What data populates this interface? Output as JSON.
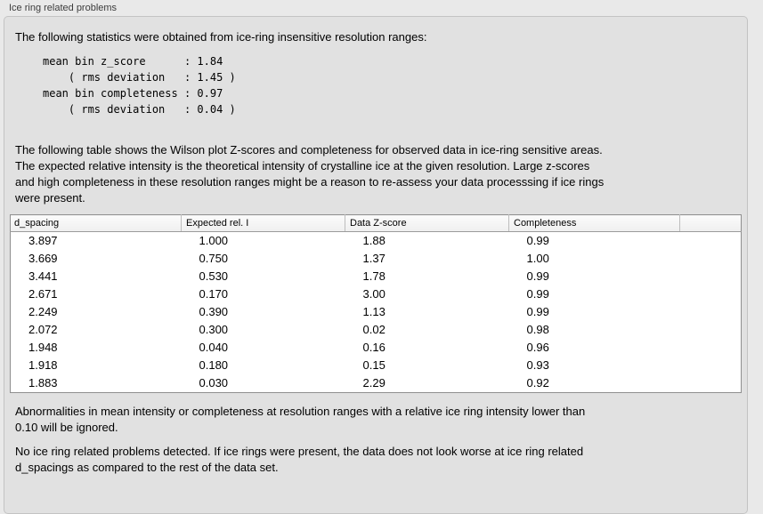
{
  "panel": {
    "title": "Ice ring related problems"
  },
  "colors": {
    "window_bg": "#e9e9e9",
    "groupbox_bg": "#e1e1e1",
    "groupbox_border": "#c3c3c3",
    "table_bg": "#ffffff",
    "table_border": "#8f8f8f",
    "header_bg": "#f3f3f3",
    "text": "#000000"
  },
  "intro": {
    "text": "The following statistics were obtained from ice-ring insensitive resolution ranges:"
  },
  "stats": {
    "mean_bin_z_score": "1.84",
    "z_score_rms_deviation": "1.45",
    "mean_bin_completeness": "0.97",
    "completeness_rms_deviation": "0.04",
    "lines": [
      "mean bin z_score      : 1.84",
      "    ( rms deviation   : 1.45 )",
      "mean bin completeness : 0.97",
      "    ( rms deviation   : 0.04 )"
    ]
  },
  "table_intro": {
    "lines": [
      "The following table shows the Wilson plot Z-scores and completeness for observed data in ice-ring sensitive areas.",
      "The expected relative intensity is the theoretical intensity of crystalline ice at the given resolution. Large z-scores",
      "and high completeness in these resolution ranges might be a reason to re-assess your data processsing if ice rings",
      "were present."
    ]
  },
  "table": {
    "columns": [
      "d_spacing",
      "Expected rel. I",
      "Data Z-score",
      "Completeness"
    ],
    "rows": [
      [
        "3.897",
        "1.000",
        "1.88",
        "0.99"
      ],
      [
        "3.669",
        "0.750",
        "1.37",
        "1.00"
      ],
      [
        "3.441",
        "0.530",
        "1.78",
        "0.99"
      ],
      [
        "2.671",
        "0.170",
        "3.00",
        "0.99"
      ],
      [
        "2.249",
        "0.390",
        "1.13",
        "0.99"
      ],
      [
        "2.072",
        "0.300",
        "0.02",
        "0.98"
      ],
      [
        "1.948",
        "0.040",
        "0.16",
        "0.96"
      ],
      [
        "1.918",
        "0.180",
        "0.15",
        "0.93"
      ],
      [
        "1.883",
        "0.030",
        "2.29",
        "0.92"
      ]
    ]
  },
  "notes": {
    "ignore_threshold_lines": [
      "Abnormalities in mean intensity or completeness at resolution ranges with a relative ice ring intensity lower than",
      "0.10 will be ignored."
    ],
    "conclusion_lines": [
      "No ice ring related problems detected. If ice rings were present, the data does not look worse at ice ring related",
      "d_spacings as compared to the rest of the data set."
    ]
  }
}
